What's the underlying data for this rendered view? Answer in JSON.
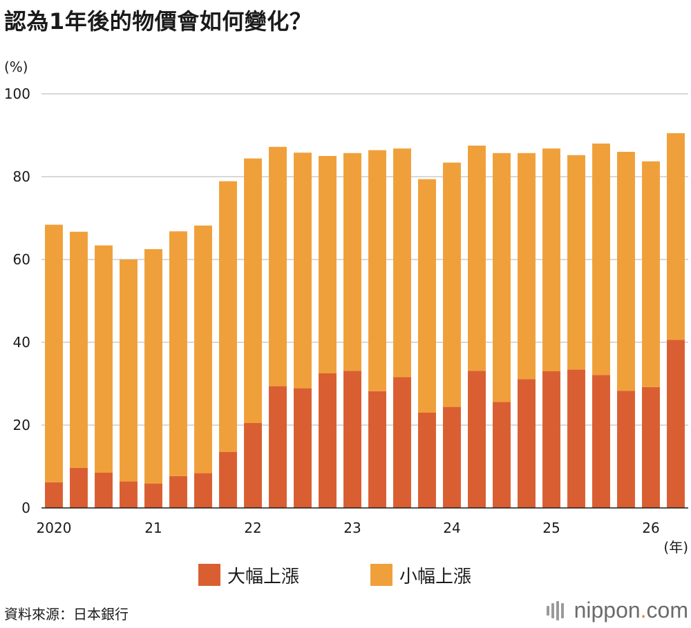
{
  "title": "認為1年後的物價會如何變化？",
  "source": "資料來源：日本銀行",
  "brand": {
    "name": "nippon",
    "dot": ".",
    "suffix": "com"
  },
  "colors": {
    "large_rise": "#d95f32",
    "small_rise": "#f0a03a",
    "grid": "#cccccc",
    "axis": "#1a1a1a"
  },
  "chart_data": {
    "type": "bar",
    "stacked": true,
    "y_unit": "(%)",
    "x_unit": "(年)",
    "ylim": [
      0,
      100
    ],
    "yticks": [
      0,
      20,
      40,
      60,
      80,
      100
    ],
    "grid": true,
    "legend_position": "bottom",
    "x_tick_labels": [
      {
        "index": 0,
        "label": "2020"
      },
      {
        "index": 4,
        "label": "21"
      },
      {
        "index": 8,
        "label": "22"
      },
      {
        "index": 12,
        "label": "23"
      },
      {
        "index": 16,
        "label": "24"
      },
      {
        "index": 20,
        "label": "25"
      },
      {
        "index": 24,
        "label": "26"
      }
    ],
    "series": [
      {
        "name": "大幅上漲",
        "color": "#d95f32",
        "values": [
          6.2,
          9.7,
          8.5,
          6.4,
          5.9,
          7.7,
          8.4,
          13.5,
          20.5,
          29.4,
          28.9,
          32.5,
          33.1,
          28.2,
          31.6,
          23.0,
          24.4,
          33.1,
          25.6,
          31.1,
          33.0,
          33.4,
          32.1,
          28.3,
          29.2,
          40.6
        ]
      },
      {
        "name": "小幅上漲",
        "color": "#f0a03a",
        "values": [
          62.2,
          57.0,
          54.9,
          53.6,
          56.6,
          59.1,
          59.8,
          65.4,
          63.9,
          57.8,
          56.9,
          52.5,
          52.6,
          58.2,
          55.2,
          56.4,
          59.0,
          54.4,
          60.1,
          54.6,
          53.8,
          51.8,
          55.9,
          57.7,
          54.5,
          49.9
        ]
      }
    ]
  }
}
